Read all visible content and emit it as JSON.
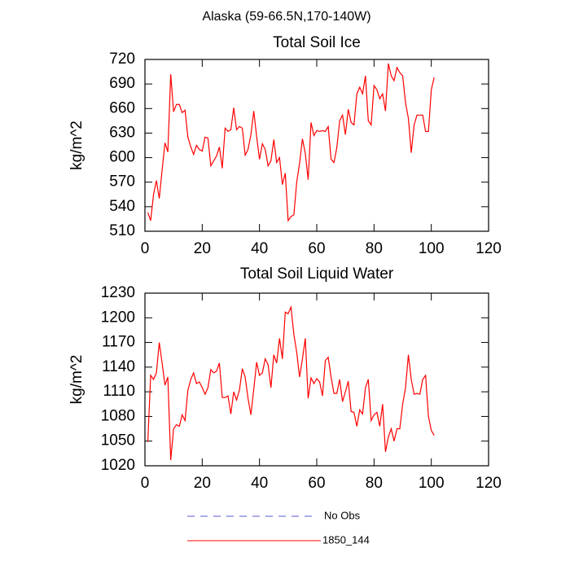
{
  "title": "Alaska (59-66.5N,170-140W)",
  "legend": [
    {
      "name": "No Obs",
      "color": "#5a5ad2",
      "dashed": true
    },
    {
      "name": "1850_144",
      "color": "#ff0000",
      "dashed": false
    }
  ],
  "chart_data": [
    {
      "type": "line",
      "title": "Total Soil Ice",
      "ylabel": "kg/m^2",
      "xlim": [
        0,
        120
      ],
      "xticks": [
        0,
        20,
        40,
        60,
        80,
        100,
        120
      ],
      "ylim": [
        510,
        720
      ],
      "yticks": [
        510,
        540,
        570,
        600,
        630,
        660,
        690,
        720
      ],
      "x": [
        1,
        2,
        3,
        4,
        5,
        6,
        7,
        8,
        9,
        10,
        11,
        12,
        13,
        14,
        15,
        16,
        17,
        18,
        19,
        20,
        21,
        22,
        23,
        24,
        25,
        26,
        27,
        28,
        29,
        30,
        31,
        32,
        33,
        34,
        35,
        36,
        37,
        38,
        39,
        40,
        41,
        42,
        43,
        44,
        45,
        46,
        47,
        48,
        49,
        50,
        51,
        52,
        53,
        54,
        55,
        56,
        57,
        58,
        59,
        60,
        61,
        62,
        63,
        64,
        65,
        66,
        67,
        68,
        69,
        70,
        71,
        72,
        73,
        74,
        75,
        76,
        77,
        78,
        79,
        80,
        81,
        82,
        83,
        84,
        85,
        86,
        87,
        88,
        89,
        90,
        91,
        92,
        93,
        94,
        95,
        96,
        97,
        98,
        99,
        100,
        101
      ],
      "series": [
        {
          "color": "#ff0000",
          "values": [
            533,
            523,
            555,
            572,
            550,
            585,
            618,
            607,
            702,
            656,
            665,
            665,
            655,
            658,
            625,
            613,
            604,
            615,
            610,
            608,
            625,
            624,
            590,
            596,
            602,
            613,
            587,
            636,
            632,
            634,
            661,
            634,
            638,
            636,
            603,
            610,
            628,
            657,
            626,
            598,
            617,
            610,
            590,
            596,
            622,
            594,
            600,
            567,
            581,
            523,
            528,
            530,
            570,
            593,
            623,
            605,
            573,
            643,
            627,
            633,
            632,
            633,
            632,
            638,
            598,
            594,
            612,
            645,
            652,
            628,
            659,
            643,
            640,
            678,
            686,
            678,
            700,
            645,
            640,
            688,
            683,
            672,
            678,
            657,
            715,
            700,
            694,
            710,
            704,
            700,
            667,
            648,
            606,
            640,
            652,
            652,
            652,
            632,
            632,
            683,
            698
          ]
        }
      ]
    },
    {
      "type": "line",
      "title": "Total Soil Liquid Water",
      "ylabel": "kg/m^2",
      "xlim": [
        0,
        120
      ],
      "xticks": [
        0,
        20,
        40,
        60,
        80,
        100,
        120
      ],
      "ylim": [
        1020,
        1230
      ],
      "yticks": [
        1020,
        1050,
        1080,
        1110,
        1140,
        1170,
        1200,
        1230
      ],
      "x": [
        1,
        2,
        3,
        4,
        5,
        6,
        7,
        8,
        9,
        10,
        11,
        12,
        13,
        14,
        15,
        16,
        17,
        18,
        19,
        20,
        21,
        22,
        23,
        24,
        25,
        26,
        27,
        28,
        29,
        30,
        31,
        32,
        33,
        34,
        35,
        36,
        37,
        38,
        39,
        40,
        41,
        42,
        43,
        44,
        45,
        46,
        47,
        48,
        49,
        50,
        51,
        52,
        53,
        54,
        55,
        56,
        57,
        58,
        59,
        60,
        61,
        62,
        63,
        64,
        65,
        66,
        67,
        68,
        69,
        70,
        71,
        72,
        73,
        74,
        75,
        76,
        77,
        78,
        79,
        80,
        81,
        82,
        83,
        84,
        85,
        86,
        87,
        88,
        89,
        90,
        91,
        92,
        93,
        94,
        95,
        96,
        97,
        98,
        99,
        100,
        101
      ],
      "series": [
        {
          "color": "#ff0000",
          "values": [
            1049,
            1130,
            1125,
            1133,
            1170,
            1145,
            1118,
            1128,
            1027,
            1065,
            1070,
            1068,
            1082,
            1075,
            1112,
            1125,
            1133,
            1120,
            1122,
            1115,
            1107,
            1115,
            1137,
            1133,
            1135,
            1145,
            1103,
            1103,
            1105,
            1083,
            1110,
            1100,
            1112,
            1138,
            1128,
            1102,
            1082,
            1113,
            1146,
            1130,
            1133,
            1150,
            1143,
            1115,
            1155,
            1145,
            1175,
            1150,
            1207,
            1205,
            1213,
            1180,
            1158,
            1128,
            1150,
            1175,
            1102,
            1127,
            1120,
            1126,
            1122,
            1105,
            1148,
            1152,
            1128,
            1108,
            1108,
            1125,
            1098,
            1110,
            1123,
            1086,
            1085,
            1068,
            1088,
            1083,
            1115,
            1125,
            1075,
            1082,
            1085,
            1068,
            1095,
            1037,
            1055,
            1065,
            1050,
            1065,
            1065,
            1095,
            1115,
            1155,
            1125,
            1107,
            1108,
            1107,
            1125,
            1130,
            1080,
            1063,
            1057
          ]
        }
      ]
    }
  ]
}
